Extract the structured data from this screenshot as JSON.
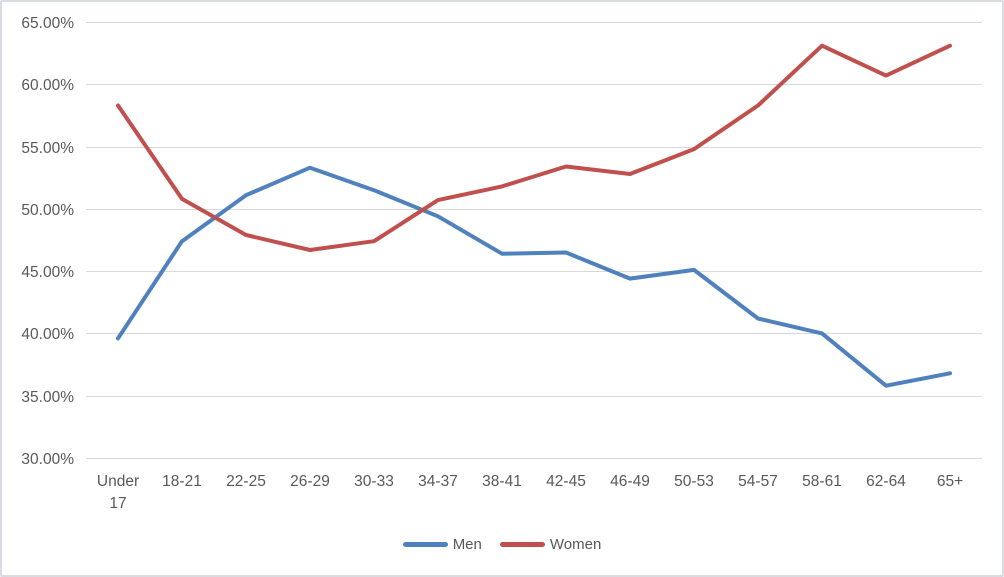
{
  "chart_data": {
    "type": "line",
    "title": "",
    "xlabel": "",
    "ylabel": "",
    "categories": [
      "Under 17",
      "18-21",
      "22-25",
      "26-29",
      "30-33",
      "34-37",
      "38-41",
      "42-45",
      "46-49",
      "50-53",
      "54-57",
      "58-61",
      "62-64",
      "65+"
    ],
    "series": [
      {
        "name": "Men",
        "color": "#4F81BD",
        "values": [
          39.6,
          47.4,
          51.1,
          53.3,
          51.5,
          49.4,
          46.4,
          46.5,
          44.4,
          45.1,
          41.2,
          40.0,
          35.8,
          36.8
        ]
      },
      {
        "name": "Women",
        "color": "#C0504D",
        "values": [
          58.3,
          50.8,
          47.9,
          46.7,
          47.4,
          50.7,
          51.8,
          53.4,
          52.8,
          54.8,
          58.3,
          63.1,
          60.7,
          63.1
        ]
      }
    ],
    "ylim": [
      30,
      65
    ],
    "ytick_step": 5,
    "ytick_labels": [
      "30.00%",
      "35.00%",
      "40.00%",
      "45.00%",
      "50.00%",
      "55.00%",
      "60.00%",
      "65.00%"
    ],
    "grid": true,
    "legend_position": "bottom"
  },
  "styles": {
    "grid_color": "#D9D9D9",
    "text_color": "#595959",
    "background": "#FFFFFF",
    "men_color": "#4F81BD",
    "women_color": "#C0504D"
  }
}
